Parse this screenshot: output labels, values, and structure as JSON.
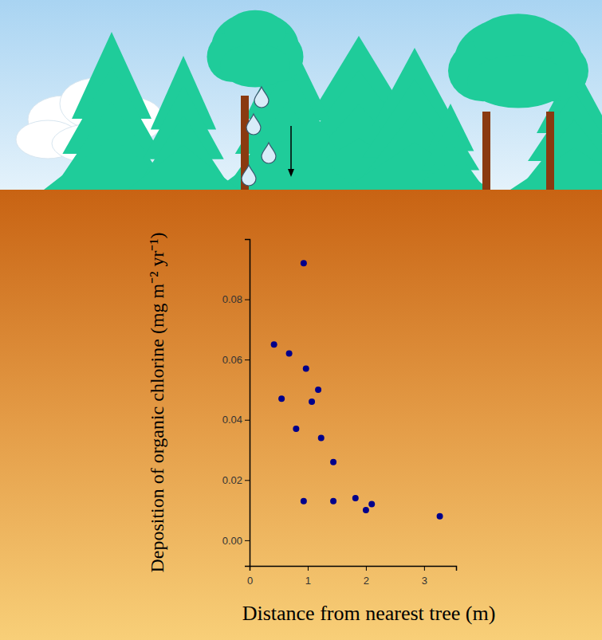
{
  "chart_data": {
    "type": "scatter",
    "x_label": "Distance from nearest tree (m)",
    "y_label": "Deposition of organic chlorine (mg m⁻² yr⁻¹)",
    "x": [
      0.42,
      0.68,
      0.97,
      0.55,
      1.18,
      1.07,
      0.8,
      1.23,
      1.44,
      0.93,
      1.44,
      1.82,
      2.0,
      2.1,
      3.27,
      0.93
    ],
    "values": [
      0.065,
      0.062,
      0.057,
      0.047,
      0.05,
      0.046,
      0.037,
      0.034,
      0.026,
      0.013,
      0.013,
      0.014,
      0.01,
      0.012,
      0.008,
      0.092
    ],
    "color": "#00008b",
    "marker": "circle",
    "xlim": [
      0,
      3.55
    ],
    "ylim": [
      -0.0085,
      0.1
    ],
    "xticks": [
      0,
      1,
      2,
      3
    ],
    "yticks": [
      {
        "value": 0,
        "label": "0.00"
      },
      {
        "value": 0.02,
        "label": "0.02"
      },
      {
        "value": 0.04,
        "label": "0.04"
      },
      {
        "value": 0.06,
        "label": "0.06"
      },
      {
        "value": 0.08,
        "label": "0.08"
      }
    ]
  }
}
